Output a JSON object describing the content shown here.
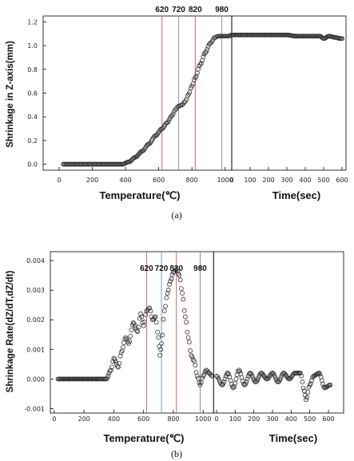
{
  "chart_data": [
    {
      "type": "scatter",
      "caption": "(a)",
      "ylabel": "Shrinkage in Z-axis(mm)",
      "xlabel_left": "Temperature(℃)",
      "xlabel_right": "Time(sec)",
      "ylim": [
        -0.05,
        1.25
      ],
      "yticks": [
        "0.0",
        "0.2",
        "0.4",
        "0.6",
        "0.8",
        "1.0",
        "1.2"
      ],
      "temperature_axis": {
        "range": [
          0,
          1040
        ],
        "ticks": [
          "0",
          "200",
          "400",
          "600",
          "800",
          "1000"
        ]
      },
      "time_axis": {
        "range": [
          0,
          600
        ],
        "ticks": [
          "0",
          "100",
          "200",
          "300",
          "400",
          "500",
          "600"
        ]
      },
      "markers": [
        {
          "label": "620",
          "x": 620,
          "color": "#e06060"
        },
        {
          "label": "720",
          "x": 720,
          "color": "#7799cc"
        },
        {
          "label": "820",
          "x": 820,
          "color": "#e06060"
        },
        {
          "label": "980",
          "x": 980,
          "color": "#7799cc"
        }
      ],
      "divider": {
        "temperature": 1040,
        "color": "#000000"
      },
      "series_temperature": {
        "x": [
          25,
          100,
          200,
          300,
          380,
          420,
          460,
          500,
          540,
          580,
          620,
          650,
          680,
          700,
          720,
          740,
          760,
          780,
          800,
          820,
          850,
          880,
          910,
          940,
          960,
          980,
          1000,
          1020,
          1040
        ],
        "y": [
          0.0,
          0.0,
          0.0,
          0.0,
          0.0,
          0.02,
          0.06,
          0.11,
          0.17,
          0.24,
          0.3,
          0.35,
          0.41,
          0.46,
          0.49,
          0.5,
          0.53,
          0.59,
          0.66,
          0.73,
          0.84,
          0.94,
          1.02,
          1.07,
          1.08,
          1.08,
          1.08,
          1.08,
          1.09
        ]
      },
      "series_time": {
        "x": [
          0,
          50,
          100,
          150,
          200,
          250,
          300,
          350,
          400,
          450,
          480,
          500,
          530,
          560,
          590,
          600
        ],
        "y": [
          1.09,
          1.09,
          1.09,
          1.09,
          1.09,
          1.09,
          1.09,
          1.08,
          1.08,
          1.08,
          1.08,
          1.06,
          1.08,
          1.07,
          1.06,
          1.06
        ]
      }
    },
    {
      "type": "scatter",
      "caption": "(b)",
      "ylabel": "Shrinkage Rate(dZ/dT,dZ/dt)",
      "xlabel_left": "Temperature(℃)",
      "xlabel_right": "Time(sec)",
      "ylim": [
        -0.00115,
        0.0043
      ],
      "yticks": [
        "-0.001",
        "0.000",
        "0.001",
        "0.002",
        "0.003",
        "0.004"
      ],
      "temperature_axis": {
        "range": [
          -10,
          1090
        ],
        "ticks": [
          "0",
          "200",
          "400",
          "600",
          "800",
          "1000"
        ]
      },
      "time_axis": {
        "range": [
          0,
          660
        ],
        "ticks": [
          "0",
          "100",
          "200",
          "300",
          "400",
          "500",
          "600"
        ]
      },
      "markers": [
        {
          "label": "620",
          "x": 620,
          "color": "#e06060"
        },
        {
          "label": "720",
          "x": 720,
          "color": "#7799cc"
        },
        {
          "label": "820",
          "x": 820,
          "color": "#e06060"
        },
        {
          "label": "980",
          "x": 980,
          "color": "#7799cc"
        }
      ],
      "divider": {
        "temperature": 1070,
        "color": "#000000"
      },
      "series_temperature": {
        "x": [
          25,
          100,
          200,
          300,
          350,
          380,
          400,
          430,
          450,
          480,
          500,
          530,
          560,
          580,
          600,
          620,
          640,
          660,
          680,
          700,
          710,
          720,
          740,
          760,
          780,
          800,
          820,
          840,
          860,
          880,
          900,
          920,
          940,
          960,
          980,
          1000,
          1020,
          1040,
          1060
        ],
        "y": [
          0.0,
          0.0,
          0.0,
          0.0,
          0.0,
          0.0003,
          0.0007,
          0.0004,
          0.0009,
          0.0014,
          0.0012,
          0.0019,
          0.0016,
          0.0022,
          0.0018,
          0.0023,
          0.0024,
          0.002,
          0.0021,
          0.0014,
          0.0008,
          0.0012,
          0.0023,
          0.0029,
          0.0033,
          0.0036,
          0.0037,
          0.0035,
          0.0029,
          0.0021,
          0.0014,
          0.0008,
          0.0006,
          0.0001,
          -0.0002,
          0.0001,
          0.0003,
          0.0002,
          0.0001
        ]
      },
      "series_time": {
        "x": [
          0,
          30,
          60,
          90,
          120,
          150,
          180,
          210,
          240,
          270,
          300,
          330,
          360,
          390,
          420,
          450,
          470,
          480,
          500,
          520,
          550,
          580,
          610
        ],
        "y": [
          0.0001,
          -0.0002,
          0.0002,
          -0.0003,
          0.0003,
          -0.0002,
          0.0002,
          -0.0001,
          0.0002,
          0.0,
          0.0002,
          -0.0001,
          0.0002,
          0.0,
          0.0002,
          0.0002,
          -0.0004,
          -0.0007,
          -0.0002,
          0.0001,
          0.0002,
          -0.0003,
          -0.0002
        ]
      }
    }
  ]
}
